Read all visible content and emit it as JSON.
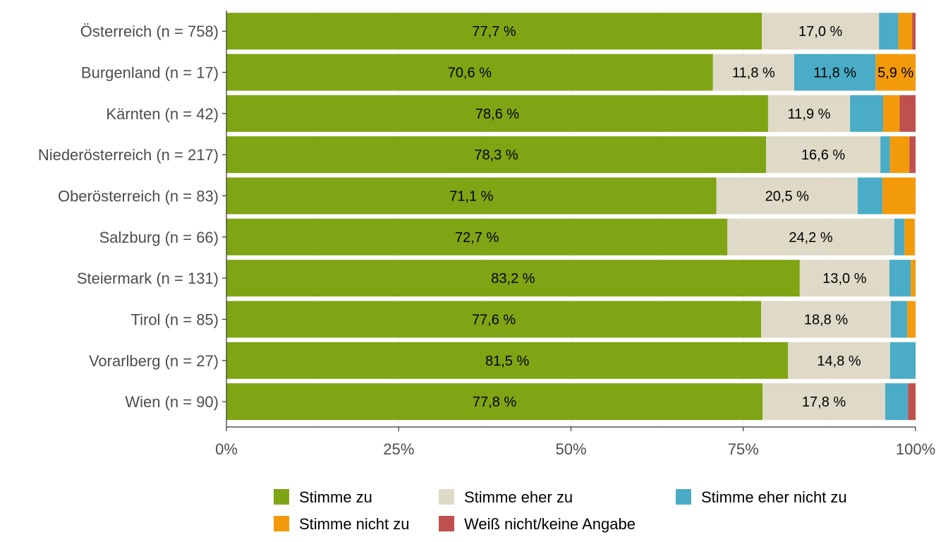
{
  "chart_data": {
    "type": "bar",
    "orientation": "horizontal",
    "stacked": true,
    "percent_scale": true,
    "categories": [
      "Österreich (n = 758)",
      "Burgenland (n = 17)",
      "Kärnten (n = 42)",
      "Niederösterreich (n = 217)",
      "Oberösterreich (n = 83)",
      "Salzburg (n = 66)",
      "Steiermark (n = 131)",
      "Tirol (n = 85)",
      "Vorarlberg (n = 27)",
      "Wien (n = 90)"
    ],
    "series": [
      {
        "name": "Stimme zu",
        "color": "#7fa414",
        "values": [
          77.7,
          70.6,
          78.6,
          78.3,
          71.1,
          72.7,
          83.2,
          77.6,
          81.5,
          77.8
        ],
        "labels": [
          "77,7 %",
          "70,6 %",
          "78,6 %",
          "78,3 %",
          "71,1 %",
          "72,7 %",
          "83,2 %",
          "77,6 %",
          "81,5 %",
          "77,8 %"
        ]
      },
      {
        "name": "Stimme eher zu",
        "color": "#dfdac7",
        "values": [
          17.0,
          11.8,
          11.9,
          16.6,
          20.5,
          24.2,
          13.0,
          18.8,
          14.8,
          17.8
        ],
        "labels": [
          "17,0 %",
          "11,8 %",
          "11,9 %",
          "16,6 %",
          "20,5 %",
          "24,2 %",
          "13,0 %",
          "18,8 %",
          "14,8 %",
          "17,8 %"
        ]
      },
      {
        "name": "Stimme eher nicht zu",
        "color": "#4aacc6",
        "values": [
          2.8,
          11.8,
          4.8,
          1.4,
          3.6,
          1.5,
          3.1,
          2.4,
          3.7,
          3.3
        ],
        "labels": [
          "",
          "11,8 %",
          "",
          "",
          "",
          "",
          "",
          "",
          "",
          ""
        ]
      },
      {
        "name": "Stimme nicht zu",
        "color": "#f39a0a",
        "values": [
          2.0,
          5.9,
          2.4,
          2.8,
          4.8,
          1.5,
          0.8,
          1.2,
          0,
          0
        ],
        "labels": [
          "",
          "5,9 %",
          "",
          "",
          "",
          "",
          "",
          "",
          "",
          ""
        ]
      },
      {
        "name": "Weiß nicht/keine Angabe",
        "color": "#c0504d",
        "values": [
          0.5,
          0,
          2.4,
          0.9,
          0,
          0,
          0,
          0,
          0,
          1.1
        ],
        "labels": [
          "",
          "",
          "",
          "",
          "",
          "",
          "",
          "",
          "",
          ""
        ]
      }
    ],
    "x_ticks": [
      "0%",
      "25%",
      "50%",
      "75%",
      "100%"
    ],
    "xlim": [
      0,
      100
    ],
    "grid": true,
    "legend_position": "bottom"
  }
}
